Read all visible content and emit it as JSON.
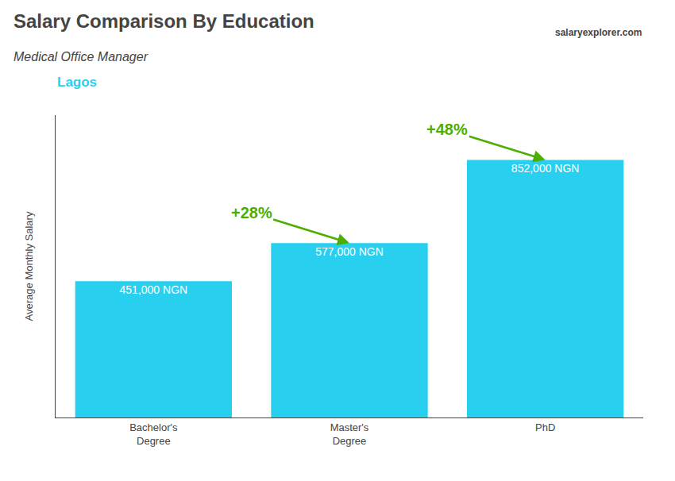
{
  "chart_data": {
    "type": "bar",
    "title": "Salary Comparison By Education",
    "subtitle": "Medical Office Manager",
    "location": "Lagos",
    "source": "salaryexplorer.com",
    "ylabel": "Average Monthly Salary",
    "categories": [
      "Bachelor's\nDegree",
      "Master's\nDegree",
      "PhD"
    ],
    "values": [
      451000,
      577000,
      852000
    ],
    "value_labels": [
      "451,000 NGN",
      "577,000 NGN",
      "852,000 NGN"
    ],
    "data_labels": true,
    "annotations": [
      "+28%",
      "+48%"
    ],
    "color": "#29CFEF",
    "ylim": [
      0,
      1000000
    ],
    "yticks": [],
    "tick_labels": "x",
    "grid": false
  }
}
